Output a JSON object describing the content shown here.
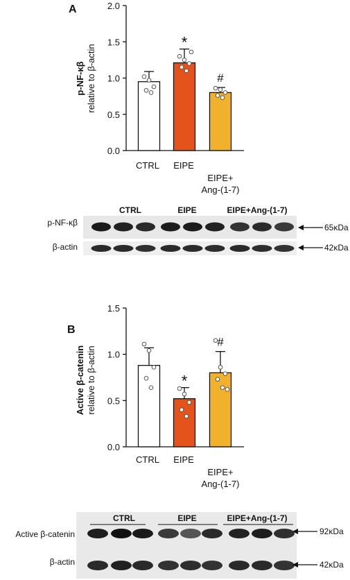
{
  "chart_data": [
    {
      "panel": "A",
      "type": "bar",
      "ylabel_line1": "p-NF-κβ",
      "ylabel_line2": "relative to β-actin",
      "ylim": [
        0,
        2.0
      ],
      "yticks": [
        "0.0",
        "0.5",
        "1.0",
        "1.5",
        "2.0"
      ],
      "categories": [
        {
          "line1": "CTRL",
          "line2": ""
        },
        {
          "line1": "EIPE",
          "line2": ""
        },
        {
          "line1": "EIPE+",
          "line2": "Ang-(1-7)"
        }
      ],
      "values": [
        0.95,
        1.21,
        0.8
      ],
      "errors": [
        0.14,
        0.19,
        0.07
      ],
      "points": [
        [
          1.02,
          0.97,
          0.88,
          0.83,
          0.8
        ],
        [
          1.3,
          1.25,
          1.2,
          1.15,
          1.1,
          1.36
        ],
        [
          0.86,
          0.84,
          0.8,
          0.76,
          0.73
        ]
      ],
      "sig": [
        "",
        "*",
        "#"
      ],
      "colors": [
        "#ffffff",
        "#e4531b",
        "#f2b12d"
      ]
    },
    {
      "panel": "B",
      "type": "bar",
      "ylabel_line1": "Active β-catenin",
      "ylabel_line2": "relative to β-actin",
      "ylim": [
        0,
        1.5
      ],
      "yticks": [
        "0.0",
        "0.5",
        "1.0",
        "1.5"
      ],
      "categories": [
        {
          "line1": "CTRL",
          "line2": ""
        },
        {
          "line1": "EIPE",
          "line2": ""
        },
        {
          "line1": "EIPE+",
          "line2": "Ang-(1-7)"
        }
      ],
      "values": [
        0.88,
        0.52,
        0.8
      ],
      "errors": [
        0.19,
        0.12,
        0.23
      ],
      "points": [
        [
          1.11,
          1.04,
          0.86,
          0.74,
          0.64
        ],
        [
          0.63,
          0.57,
          0.48,
          0.4,
          0.33
        ],
        [
          1.15,
          0.86,
          0.79,
          0.73,
          0.64,
          0.62
        ]
      ],
      "sig": [
        "*",
        "#"
      ],
      "sig_index": [
        1,
        2
      ],
      "colors": [
        "#ffffff",
        "#e4531b",
        "#f2b12d"
      ]
    }
  ],
  "panel_a": {
    "label": "A",
    "blot": {
      "groups": [
        "CTRL",
        "EIPE",
        "EIPE+Ang-(1-7)"
      ],
      "row1_label": "p-NF-κβ",
      "row1_kda": "65κDa",
      "row2_label": "β-actin",
      "row2_kda": "42κDa"
    }
  },
  "panel_b": {
    "label": "B",
    "blot": {
      "groups": [
        "CTRL",
        "EIPE",
        "EIPE+Ang-(1-7)"
      ],
      "row1_label": "Active β-catenin",
      "row1_kda": "92κDa",
      "row2_label": "β-actin",
      "row2_kda": "42κDa"
    }
  }
}
